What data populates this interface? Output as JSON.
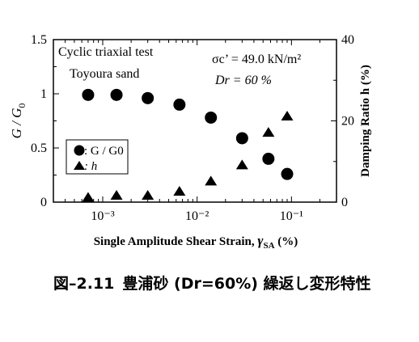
{
  "chart_data": {
    "type": "scatter",
    "x_scale": "log",
    "xlim": [
      0.0003,
      0.3
    ],
    "xticks": [
      0.001,
      0.01,
      0.1
    ],
    "xtick_labels": [
      "10⁻³",
      "10⁻²",
      "10⁻¹"
    ],
    "xlabel": "Single Amplitude Shear Strain,",
    "xlabel_symbol": "γ",
    "xlabel_sub": "SA",
    "xlabel_unit": "(%)",
    "ylabel_left": "G / G",
    "ylabel_left_sub": "0",
    "ylim_left": [
      0,
      1.5
    ],
    "yticks_left": [
      "0",
      "0.5",
      "1",
      "1.5"
    ],
    "ylabel_right": "Damping Ratio  h (%)",
    "ylim_right": [
      0,
      40
    ],
    "yticks_right": [
      "0",
      "20",
      "40"
    ],
    "annotations": [
      "Cyclic triaxial test",
      "Toyoura sand",
      "σc’ = 49.0 kN/m²",
      "Dr = 60 %"
    ],
    "legend": {
      "placement": "lower-left",
      "entries": [
        {
          "marker": "circle",
          "label": ": G / G0"
        },
        {
          "marker": "triangle",
          "label": ": h"
        }
      ]
    },
    "series": [
      {
        "name": "G / G0",
        "axis": "left",
        "marker": "circle",
        "points": [
          {
            "x": 0.0007,
            "y": 0.99
          },
          {
            "x": 0.0014,
            "y": 0.99
          },
          {
            "x": 0.003,
            "y": 0.96
          },
          {
            "x": 0.0065,
            "y": 0.9
          },
          {
            "x": 0.014,
            "y": 0.78
          },
          {
            "x": 0.03,
            "y": 0.59
          },
          {
            "x": 0.057,
            "y": 0.4
          },
          {
            "x": 0.09,
            "y": 0.26
          }
        ]
      },
      {
        "name": "h",
        "axis": "right",
        "marker": "triangle",
        "points": [
          {
            "x": 0.0007,
            "y": 1
          },
          {
            "x": 0.0014,
            "y": 1.5
          },
          {
            "x": 0.003,
            "y": 1.5
          },
          {
            "x": 0.0065,
            "y": 2.5
          },
          {
            "x": 0.014,
            "y": 5
          },
          {
            "x": 0.03,
            "y": 9
          },
          {
            "x": 0.057,
            "y": 17
          },
          {
            "x": 0.09,
            "y": 21
          }
        ]
      }
    ]
  },
  "caption": {
    "number": "図–2.11",
    "text": "豊浦砂 (Dr=60%) 繰返し変形特性"
  }
}
